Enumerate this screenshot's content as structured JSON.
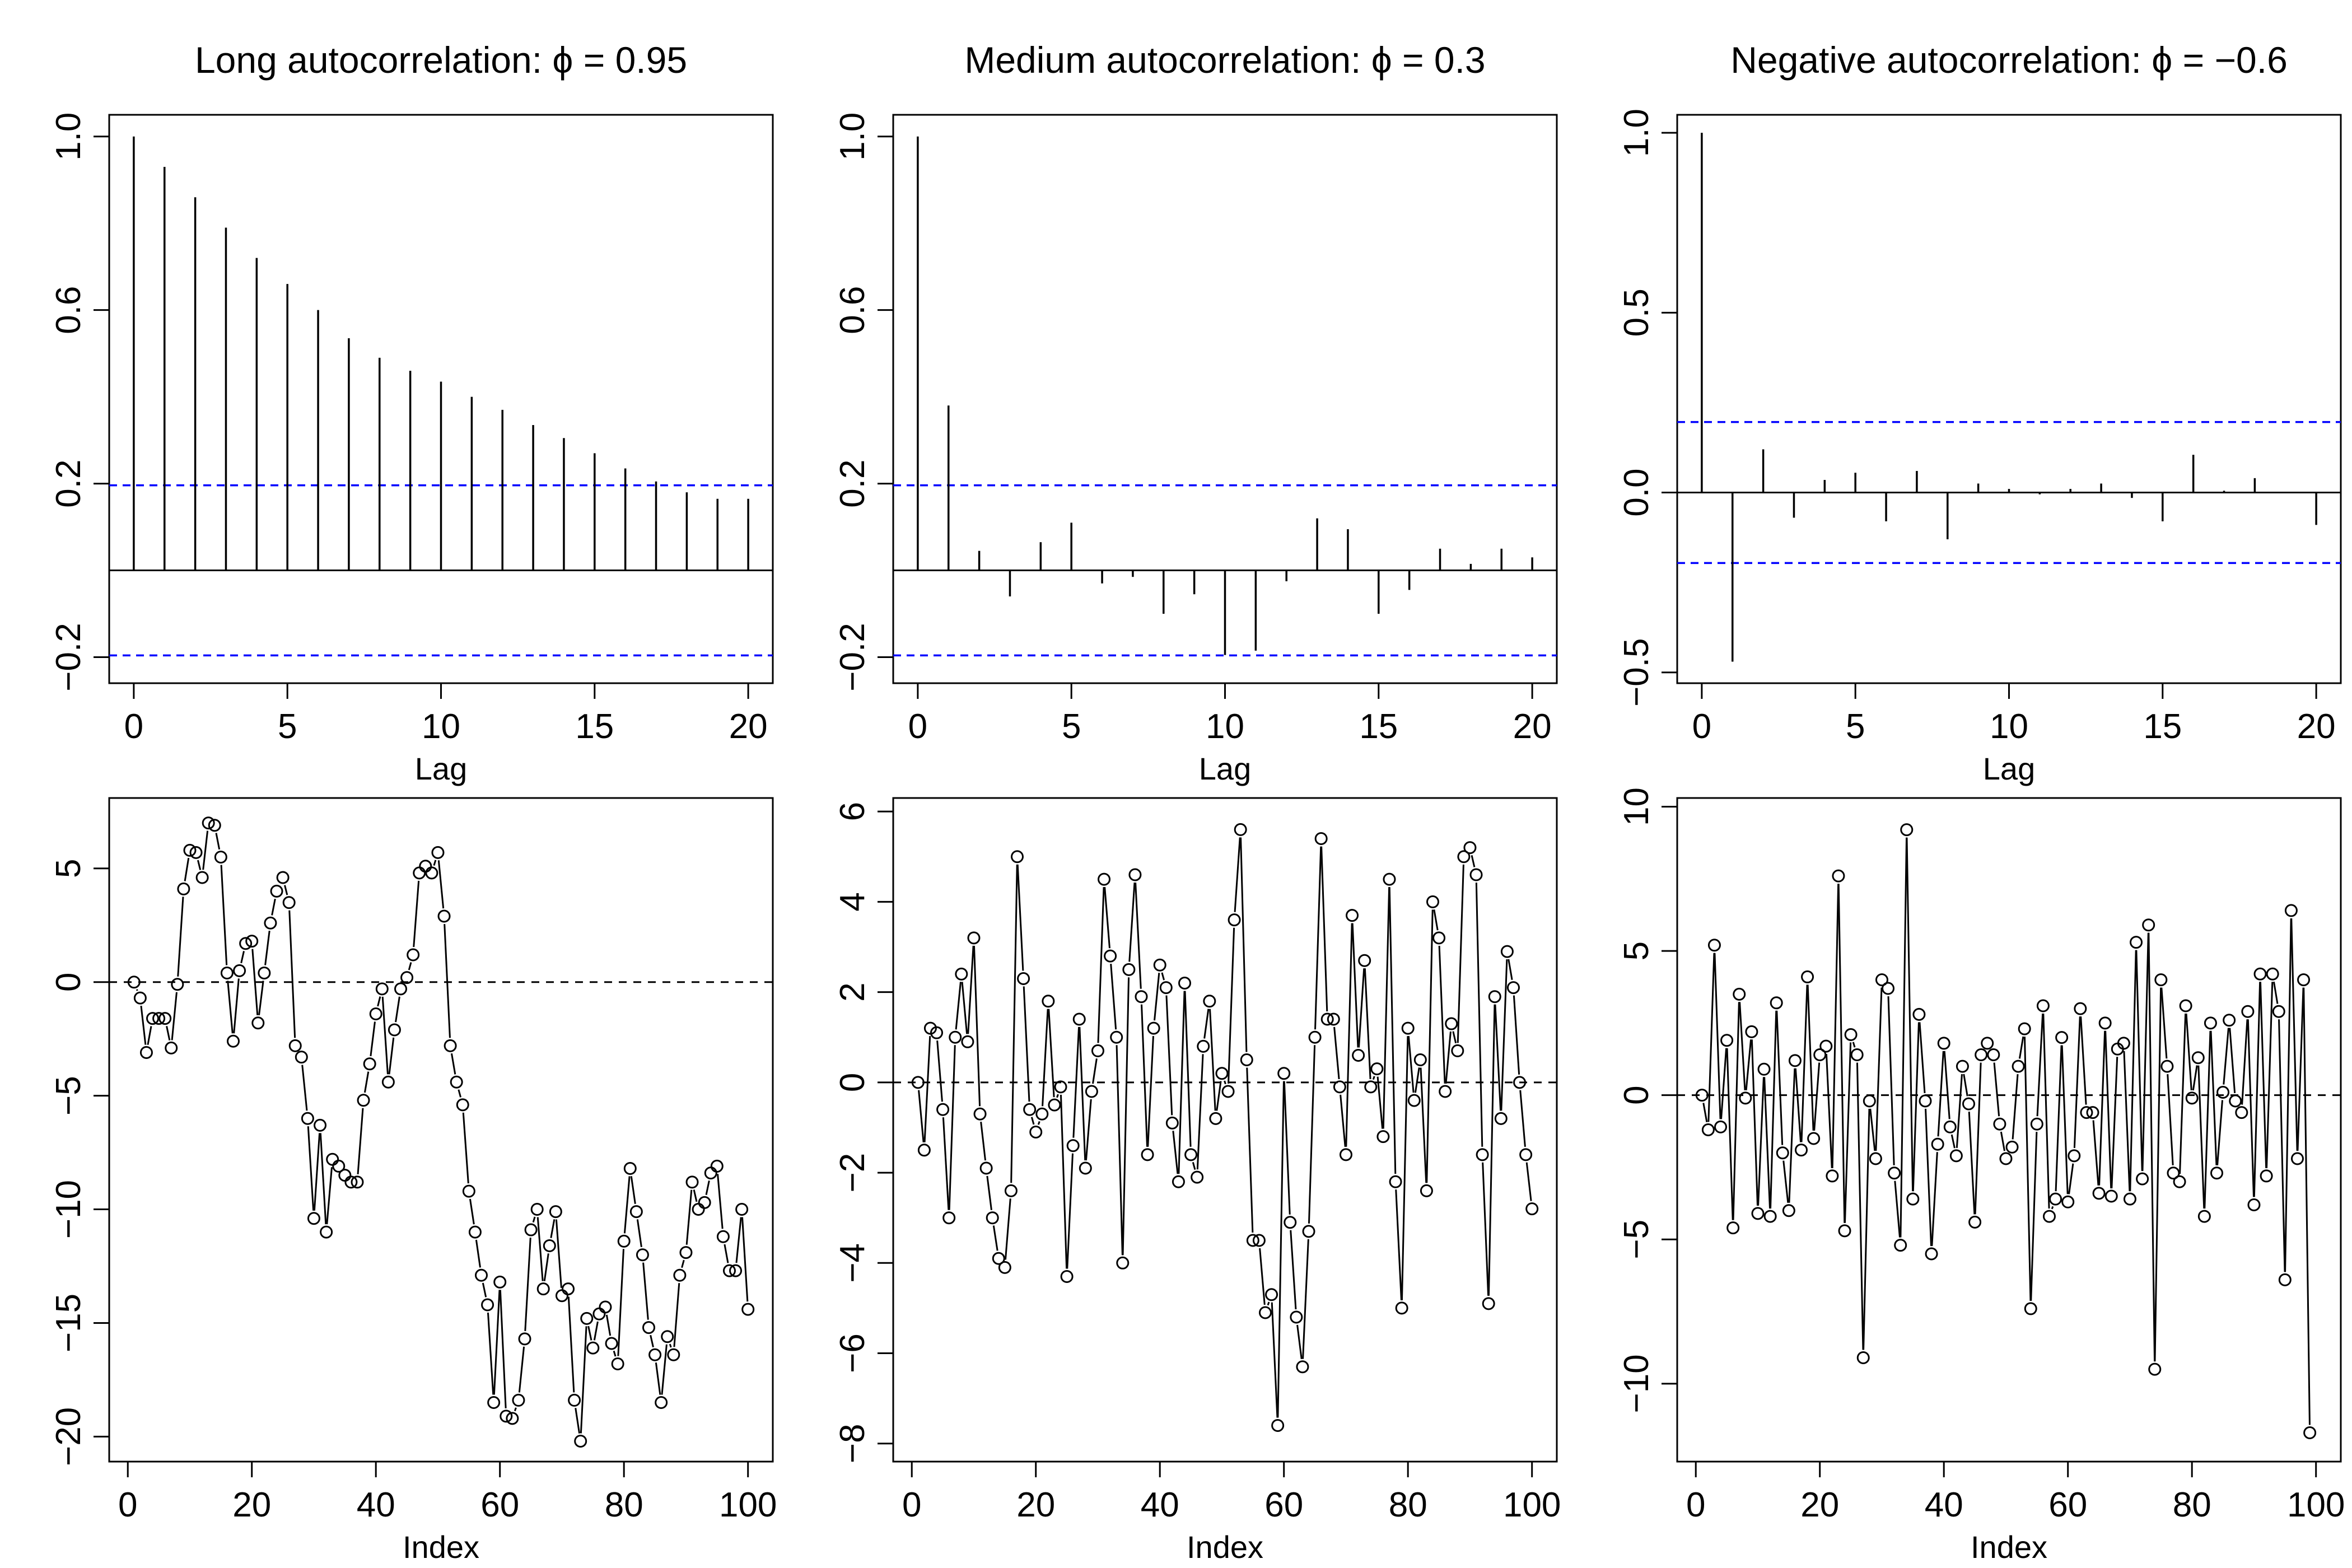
{
  "colors": {
    "ink": "#000000",
    "band": "#0000ff",
    "background": "#ffffff"
  },
  "chart_data": [
    {
      "type": "bar",
      "kind": "acf",
      "title": "Long autocorrelation: ϕ = 0.95",
      "xlabel": "Lag",
      "ylabel": "",
      "xlim": [
        -0.8,
        20.8
      ],
      "ylim": [
        -0.26,
        1.05
      ],
      "xticks": [
        0,
        5,
        10,
        15,
        20
      ],
      "yticks": [
        -0.2,
        0.2,
        0.6,
        1.0
      ],
      "ytick_labels": [
        "−0.2",
        "0.2",
        "0.6",
        "1.0"
      ],
      "lags": [
        0,
        1,
        2,
        3,
        4,
        5,
        6,
        7,
        8,
        9,
        10,
        11,
        12,
        13,
        14,
        15,
        16,
        17,
        18,
        19,
        20
      ],
      "values": [
        1.0,
        0.93,
        0.86,
        0.79,
        0.72,
        0.66,
        0.6,
        0.535,
        0.49,
        0.46,
        0.435,
        0.4,
        0.37,
        0.335,
        0.305,
        0.27,
        0.235,
        0.205,
        0.18,
        0.165,
        0.165
      ],
      "confidence_band": 0.196,
      "grid": false
    },
    {
      "type": "bar",
      "kind": "acf",
      "title": "Medium autocorrelation: ϕ = 0.3",
      "xlabel": "Lag",
      "ylabel": "",
      "xlim": [
        -0.8,
        20.8
      ],
      "ylim": [
        -0.26,
        1.05
      ],
      "xticks": [
        0,
        5,
        10,
        15,
        20
      ],
      "yticks": [
        -0.2,
        0.2,
        0.6,
        1.0
      ],
      "ytick_labels": [
        "−0.2",
        "0.2",
        "0.6",
        "1.0"
      ],
      "lags": [
        0,
        1,
        2,
        3,
        4,
        5,
        6,
        7,
        8,
        9,
        10,
        11,
        12,
        13,
        14,
        15,
        16,
        17,
        18,
        19,
        20
      ],
      "values": [
        1.0,
        0.38,
        0.045,
        -0.06,
        0.065,
        0.11,
        -0.03,
        -0.015,
        -0.1,
        -0.055,
        -0.195,
        -0.185,
        -0.025,
        0.12,
        0.095,
        -0.1,
        -0.045,
        0.05,
        0.015,
        0.05,
        0.03
      ],
      "confidence_band": 0.196,
      "grid": false
    },
    {
      "type": "bar",
      "kind": "acf",
      "title": "Negative autocorrelation: ϕ = −0.6",
      "xlabel": "Lag",
      "ylabel": "",
      "xlim": [
        -0.8,
        20.8
      ],
      "ylim": [
        -0.53,
        1.05
      ],
      "xticks": [
        0,
        5,
        10,
        15,
        20
      ],
      "yticks": [
        -0.5,
        0.0,
        0.5,
        1.0
      ],
      "ytick_labels": [
        "−0.5",
        "0.0",
        "0.5",
        "1.0"
      ],
      "lags": [
        0,
        1,
        2,
        3,
        4,
        5,
        6,
        7,
        8,
        9,
        10,
        11,
        12,
        13,
        14,
        15,
        16,
        17,
        18,
        19,
        20
      ],
      "values": [
        1.0,
        -0.47,
        0.12,
        -0.07,
        0.035,
        0.055,
        -0.08,
        0.06,
        -0.13,
        0.025,
        0.01,
        -0.005,
        0.01,
        0.025,
        -0.015,
        -0.08,
        0.105,
        0.005,
        0.04,
        0.0,
        -0.09
      ],
      "confidence_band": 0.196,
      "grid": false
    },
    {
      "type": "line",
      "kind": "series",
      "title": "",
      "xlabel": "Index",
      "ylabel": "",
      "xlim": [
        -3,
        104
      ],
      "ylim": [
        -21.1,
        8.1
      ],
      "xticks": [
        0,
        20,
        40,
        60,
        80,
        100
      ],
      "yticks": [
        -20,
        -15,
        -10,
        -5,
        0,
        5
      ],
      "ytick_labels": [
        "−20",
        "−15",
        "−10",
        "−5",
        "0",
        "5"
      ],
      "reference_line": 0,
      "x_start": 1,
      "values": [
        0,
        -0.7,
        -3.1,
        -1.6,
        -1.6,
        -1.6,
        -2.9,
        -0.1,
        4.1,
        5.8,
        5.7,
        4.6,
        7.0,
        6.9,
        5.5,
        0.4,
        -2.6,
        0.5,
        1.7,
        1.8,
        -1.8,
        0.4,
        2.6,
        4.0,
        4.6,
        3.5,
        -2.8,
        -3.3,
        -6.0,
        -10.4,
        -6.3,
        -11.0,
        -7.8,
        -8.1,
        -8.5,
        -8.8,
        -8.8,
        -5.2,
        -3.6,
        -1.4,
        -0.3,
        -4.4,
        -2.1,
        -0.3,
        0.2,
        1.2,
        4.8,
        5.1,
        4.8,
        5.7,
        2.9,
        -2.8,
        -4.4,
        -5.4,
        -9.2,
        -11.0,
        -12.9,
        -14.2,
        -18.5,
        -13.2,
        -19.1,
        -19.2,
        -18.4,
        -15.7,
        -10.9,
        -10.0,
        -13.5,
        -11.6,
        -10.1,
        -13.8,
        -13.5,
        -18.4,
        -20.2,
        -14.8,
        -16.1,
        -14.6,
        -14.3,
        -15.9,
        -16.8,
        -11.4,
        -8.2,
        -10.1,
        -12.0,
        -15.2,
        -16.4,
        -18.5,
        -15.6,
        -16.4,
        -12.9,
        -11.9,
        -8.8,
        -10.0,
        -9.7,
        -8.4,
        -8.1,
        -11.2,
        -12.7,
        -12.7,
        -10.0,
        -14.4
      ]
    },
    {
      "type": "line",
      "kind": "series",
      "title": "",
      "xlabel": "Index",
      "ylabel": "",
      "xlim": [
        -3,
        104
      ],
      "ylim": [
        -8.4,
        6.3
      ],
      "xticks": [
        0,
        20,
        40,
        60,
        80,
        100
      ],
      "yticks": [
        -8,
        -6,
        -4,
        -2,
        0,
        2,
        4,
        6
      ],
      "ytick_labels": [
        "−8",
        "−6",
        "−4",
        "−2",
        "0",
        "2",
        "4",
        "6"
      ],
      "reference_line": 0,
      "x_start": 1,
      "values": [
        0,
        -1.5,
        1.2,
        1.1,
        -0.6,
        -3.0,
        1.0,
        2.4,
        0.9,
        3.2,
        -0.7,
        -1.9,
        -3.0,
        -3.9,
        -4.1,
        -2.4,
        5.0,
        2.3,
        -0.6,
        -1.1,
        -0.7,
        1.8,
        -0.5,
        -0.1,
        -4.3,
        -1.4,
        1.4,
        -1.9,
        -0.2,
        0.7,
        4.5,
        2.8,
        1.0,
        -4.0,
        2.5,
        4.6,
        1.9,
        -1.6,
        1.2,
        2.6,
        2.1,
        -0.9,
        -2.2,
        2.2,
        -1.6,
        -2.1,
        0.8,
        1.8,
        -0.8,
        0.2,
        -0.2,
        3.6,
        5.6,
        0.5,
        -3.5,
        -3.5,
        -5.1,
        -4.7,
        -7.6,
        0.2,
        -3.1,
        -5.2,
        -6.3,
        -3.3,
        1.0,
        5.4,
        1.4,
        1.4,
        -0.1,
        -1.6,
        3.7,
        0.6,
        2.7,
        -0.1,
        0.3,
        -1.2,
        4.5,
        -2.2,
        -5.0,
        1.2,
        -0.4,
        0.5,
        -2.4,
        4.0,
        3.2,
        -0.2,
        1.3,
        0.7,
        5.0,
        5.2,
        4.6,
        -1.6,
        -4.9,
        1.9,
        -0.8,
        2.9,
        2.1,
        -0.0,
        -1.6,
        -2.8
      ]
    },
    {
      "type": "line",
      "kind": "series",
      "title": "",
      "xlabel": "Index",
      "ylabel": "",
      "xlim": [
        -3,
        104
      ],
      "ylim": [
        -12.7,
        10.3
      ],
      "xticks": [
        0,
        20,
        40,
        60,
        80,
        100
      ],
      "yticks": [
        -10,
        -5,
        0,
        5,
        10
      ],
      "ytick_labels": [
        "−10",
        "−5",
        "0",
        "5",
        "10"
      ],
      "reference_line": 0,
      "x_start": 1,
      "values": [
        0,
        -1.2,
        5.2,
        -1.1,
        1.9,
        -4.6,
        3.5,
        -0.1,
        2.2,
        -4.1,
        0.9,
        -4.2,
        3.2,
        -2.0,
        -4.0,
        1.2,
        -1.9,
        4.1,
        -1.5,
        1.4,
        1.7,
        -2.8,
        7.6,
        -4.7,
        2.1,
        1.4,
        -9.1,
        -0.2,
        -2.2,
        4.0,
        3.7,
        -2.7,
        -5.2,
        9.2,
        -3.6,
        2.8,
        -0.2,
        -5.5,
        -1.7,
        1.8,
        -1.1,
        -2.1,
        1.0,
        -0.3,
        -4.4,
        1.4,
        1.8,
        1.4,
        -1.0,
        -2.2,
        -1.8,
        1.0,
        2.3,
        -7.4,
        -1.0,
        3.1,
        -4.2,
        -3.6,
        2.0,
        -3.7,
        -2.1,
        3.0,
        -0.6,
        -0.6,
        -3.4,
        2.5,
        -3.5,
        1.6,
        1.8,
        -3.6,
        5.3,
        -2.9,
        5.9,
        -9.5,
        4.0,
        1.0,
        -2.7,
        -3.0,
        3.1,
        -0.1,
        1.3,
        -4.2,
        2.5,
        -2.7,
        0.1,
        2.6,
        -0.2,
        -0.6,
        2.9,
        -3.8,
        4.2,
        -2.8,
        4.2,
        2.9,
        -6.4,
        6.4,
        -2.2,
        4.0,
        -11.7
      ]
    }
  ]
}
